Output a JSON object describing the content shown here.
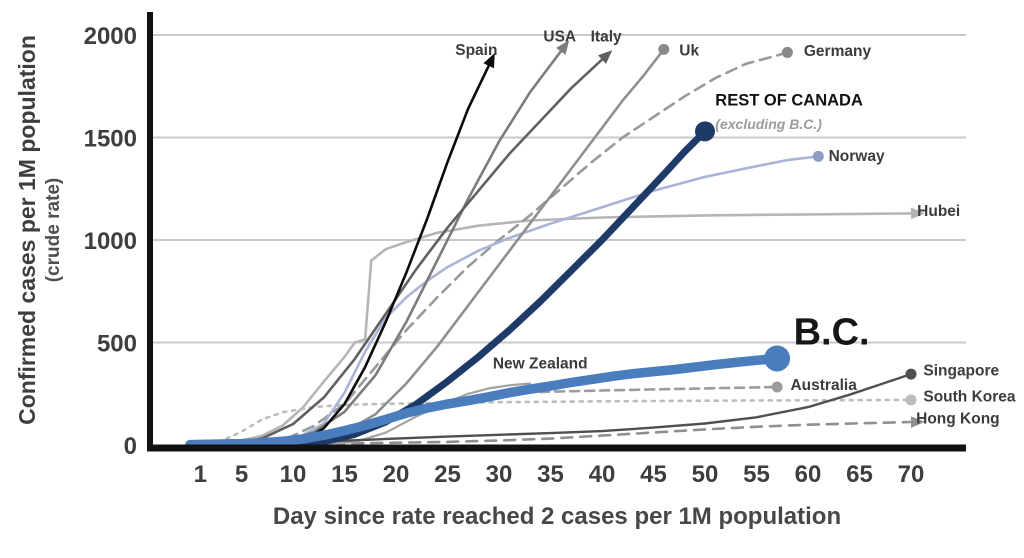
{
  "chart_data": {
    "type": "line",
    "xlabel": "Day since rate reached 2 cases per 1M population",
    "ylabel": "Confirmed cases per 1M population",
    "ylabel_sub": "(crude rate)",
    "xticks": [
      1,
      5,
      10,
      15,
      20,
      25,
      30,
      35,
      40,
      45,
      50,
      55,
      60,
      65,
      70
    ],
    "yticks": [
      0,
      500,
      1000,
      1500,
      2000
    ],
    "xlim": [
      0,
      73
    ],
    "ylim": [
      0,
      2050
    ],
    "grid_color": "#c9c9c9",
    "axis_color": "#111111",
    "tick_color": "#3e3e3e",
    "series": [
      {
        "id": "hubei",
        "name": "Hubei",
        "color": "#b5b5b5",
        "width": 2.6,
        "dash": null,
        "end": "arrow",
        "label": {
          "text": "Hubei",
          "d": 70.6,
          "v": 1118,
          "anchor": "start"
        },
        "points": [
          [
            1,
            2
          ],
          [
            4,
            10
          ],
          [
            7,
            45
          ],
          [
            9,
            95
          ],
          [
            11,
            185
          ],
          [
            13,
            310
          ],
          [
            15,
            430
          ],
          [
            16,
            500
          ],
          [
            17,
            515
          ],
          [
            17.6,
            900
          ],
          [
            19,
            955
          ],
          [
            21,
            990
          ],
          [
            24,
            1035
          ],
          [
            28,
            1070
          ],
          [
            33,
            1095
          ],
          [
            40,
            1110
          ],
          [
            50,
            1120
          ],
          [
            60,
            1125
          ],
          [
            70,
            1130
          ]
        ]
      },
      {
        "id": "south-korea",
        "name": "South Korea",
        "color": "#bcbcbc",
        "width": 2.6,
        "dash": "3 6",
        "end": "dot",
        "label": {
          "text": "South Korea",
          "d": 71.2,
          "v": 212,
          "anchor": "start"
        },
        "points": [
          [
            1,
            2
          ],
          [
            3,
            18
          ],
          [
            5,
            65
          ],
          [
            7,
            125
          ],
          [
            9,
            160
          ],
          [
            12,
            185
          ],
          [
            15,
            196
          ],
          [
            20,
            202
          ],
          [
            25,
            206
          ],
          [
            30,
            209
          ],
          [
            40,
            213
          ],
          [
            50,
            216
          ],
          [
            60,
            218
          ],
          [
            70,
            220
          ]
        ]
      },
      {
        "id": "hong-kong",
        "name": "Hong Kong",
        "color": "#8f8f8f",
        "width": 2.6,
        "dash": "11 8",
        "end": "arrow",
        "label": {
          "text": "Hong Kong",
          "d": 70.5,
          "v": 104,
          "anchor": "start"
        },
        "points": [
          [
            1,
            2
          ],
          [
            5,
            4
          ],
          [
            10,
            6
          ],
          [
            15,
            8
          ],
          [
            20,
            11
          ],
          [
            25,
            15
          ],
          [
            30,
            22
          ],
          [
            35,
            31
          ],
          [
            40,
            46
          ],
          [
            45,
            61
          ],
          [
            50,
            76
          ],
          [
            55,
            89
          ],
          [
            60,
            99
          ],
          [
            65,
            106
          ],
          [
            70,
            112
          ]
        ]
      },
      {
        "id": "australia",
        "name": "Australia",
        "color": "#9c9c9c",
        "width": 2.6,
        "dash": "9 6",
        "end": "dot",
        "label": {
          "text": "Australia",
          "d": 58.3,
          "v": 268,
          "anchor": "start"
        },
        "points": [
          [
            10,
            2
          ],
          [
            13,
            12
          ],
          [
            16,
            45
          ],
          [
            19,
            110
          ],
          [
            22,
            170
          ],
          [
            25,
            215
          ],
          [
            28,
            240
          ],
          [
            31,
            252
          ],
          [
            35,
            260
          ],
          [
            40,
            266
          ],
          [
            45,
            271
          ],
          [
            50,
            276
          ],
          [
            54,
            280
          ],
          [
            57,
            283
          ]
        ]
      },
      {
        "id": "new-zealand",
        "name": "New Zealand",
        "color": "#a3a3a3",
        "width": 2.2,
        "dash": null,
        "end": null,
        "label": {
          "text": "New Zealand",
          "d": 34,
          "v": 372,
          "anchor": "middle"
        },
        "points": [
          [
            13,
            2
          ],
          [
            16,
            15
          ],
          [
            19,
            60
          ],
          [
            22,
            140
          ],
          [
            25,
            210
          ],
          [
            27,
            250
          ],
          [
            29,
            276
          ],
          [
            31,
            291
          ],
          [
            33,
            300
          ]
        ]
      },
      {
        "id": "singapore",
        "name": "Singapore",
        "color": "#4f4f4f",
        "width": 2.4,
        "dash": null,
        "end": "dot",
        "label": {
          "text": "Singapore",
          "d": 71.2,
          "v": 338,
          "anchor": "start"
        },
        "points": [
          [
            1,
            2
          ],
          [
            5,
            7
          ],
          [
            10,
            13
          ],
          [
            15,
            21
          ],
          [
            20,
            31
          ],
          [
            25,
            41
          ],
          [
            30,
            50
          ],
          [
            35,
            58
          ],
          [
            40,
            68
          ],
          [
            45,
            85
          ],
          [
            50,
            105
          ],
          [
            55,
            135
          ],
          [
            60,
            185
          ],
          [
            64,
            245
          ],
          [
            67,
            295
          ],
          [
            70,
            346
          ]
        ]
      },
      {
        "id": "germany",
        "name": "Germany",
        "color": "#9a9a9a",
        "width": 2.6,
        "dash": "11 7",
        "end": "dot",
        "dot_color": "#8a8a8a",
        "label": {
          "text": "Germany",
          "d": 59.6,
          "v": 1898,
          "anchor": "start"
        },
        "points": [
          [
            6,
            2
          ],
          [
            9,
            22
          ],
          [
            12,
            92
          ],
          [
            15,
            200
          ],
          [
            18,
            380
          ],
          [
            21,
            560
          ],
          [
            24,
            720
          ],
          [
            27,
            870
          ],
          [
            30,
            1000
          ],
          [
            33,
            1120
          ],
          [
            36,
            1250
          ],
          [
            39,
            1380
          ],
          [
            42,
            1500
          ],
          [
            45,
            1600
          ],
          [
            48,
            1700
          ],
          [
            51,
            1790
          ],
          [
            54,
            1860
          ],
          [
            57,
            1900
          ],
          [
            58,
            1915
          ]
        ]
      },
      {
        "id": "norway",
        "name": "Norway",
        "color": "#aab4d8",
        "width": 2.6,
        "dash": null,
        "end": "dot",
        "dot_color": "#8e9cc6",
        "label": {
          "text": "Norway",
          "d": 62,
          "v": 1385,
          "anchor": "start"
        },
        "points": [
          [
            7,
            2
          ],
          [
            10,
            22
          ],
          [
            13,
            105
          ],
          [
            15,
            255
          ],
          [
            17,
            455
          ],
          [
            19,
            620
          ],
          [
            21,
            720
          ],
          [
            23,
            800
          ],
          [
            25,
            868
          ],
          [
            28,
            948
          ],
          [
            31,
            1010
          ],
          [
            35,
            1080
          ],
          [
            40,
            1160
          ],
          [
            45,
            1240
          ],
          [
            50,
            1308
          ],
          [
            55,
            1360
          ],
          [
            58,
            1390
          ],
          [
            61,
            1408
          ]
        ]
      },
      {
        "id": "uk",
        "name": "Uk",
        "color": "#8f8f8f",
        "width": 2.6,
        "dash": null,
        "end": "dot",
        "dot_color": "#8a8a8a",
        "label": {
          "text": "Uk",
          "d": 47.5,
          "v": 1900,
          "anchor": "start"
        },
        "points": [
          [
            9,
            2
          ],
          [
            12,
            16
          ],
          [
            15,
            62
          ],
          [
            18,
            150
          ],
          [
            21,
            300
          ],
          [
            24,
            480
          ],
          [
            27,
            680
          ],
          [
            30,
            880
          ],
          [
            33,
            1080
          ],
          [
            36,
            1280
          ],
          [
            39,
            1480
          ],
          [
            42,
            1680
          ],
          [
            44,
            1800
          ],
          [
            46,
            1930
          ]
        ]
      },
      {
        "id": "usa",
        "name": "USA",
        "color": "#7c7c7c",
        "width": 2.6,
        "dash": null,
        "end": "arrow",
        "label": {
          "text": "USA",
          "d": 35.9,
          "v": 1968,
          "anchor": "middle"
        },
        "points": [
          [
            6,
            2
          ],
          [
            9,
            16
          ],
          [
            12,
            62
          ],
          [
            15,
            162
          ],
          [
            18,
            340
          ],
          [
            21,
            600
          ],
          [
            24,
            900
          ],
          [
            27,
            1200
          ],
          [
            30,
            1480
          ],
          [
            33,
            1720
          ],
          [
            36,
            1920
          ]
        ]
      },
      {
        "id": "italy",
        "name": "Italy",
        "color": "#606060",
        "width": 2.6,
        "dash": null,
        "end": "arrow",
        "label": {
          "text": "Italy",
          "d": 40.4,
          "v": 1968,
          "anchor": "middle"
        },
        "points": [
          [
            4,
            2
          ],
          [
            7,
            32
          ],
          [
            10,
            102
          ],
          [
            13,
            232
          ],
          [
            16,
            420
          ],
          [
            19,
            640
          ],
          [
            22,
            860
          ],
          [
            25,
            1060
          ],
          [
            28,
            1240
          ],
          [
            31,
            1420
          ],
          [
            34,
            1580
          ],
          [
            37,
            1740
          ],
          [
            40,
            1880
          ]
        ]
      },
      {
        "id": "spain",
        "name": "Spain",
        "color": "#0b0b0b",
        "width": 2.6,
        "dash": null,
        "end": "arrow",
        "label": {
          "text": "Spain",
          "d": 27.8,
          "v": 1902,
          "anchor": "middle"
        },
        "points": [
          [
            9,
            2
          ],
          [
            11,
            22
          ],
          [
            13,
            82
          ],
          [
            15,
            200
          ],
          [
            17,
            380
          ],
          [
            19,
            600
          ],
          [
            21,
            840
          ],
          [
            23,
            1100
          ],
          [
            25,
            1380
          ],
          [
            27,
            1640
          ],
          [
            29,
            1850
          ]
        ]
      },
      {
        "id": "rest-of-canada",
        "name": "REST OF CANADA",
        "color": "#1e3a66",
        "width": 7,
        "dash": null,
        "end": "dot",
        "dot_r": 10,
        "label": {
          "text": "REST OF CANADA",
          "d": 51,
          "v": 1655,
          "anchor": "start",
          "size": 16.5,
          "color": "#111111"
        },
        "sublabel": {
          "text": "(excluding B.C.)",
          "d": 51,
          "v": 1542,
          "size": 14,
          "color": "#9b9b9b"
        },
        "points": [
          [
            10,
            2
          ],
          [
            13,
            16
          ],
          [
            16,
            52
          ],
          [
            19,
            112
          ],
          [
            22,
            200
          ],
          [
            25,
            310
          ],
          [
            28,
            430
          ],
          [
            31,
            560
          ],
          [
            34,
            700
          ],
          [
            37,
            850
          ],
          [
            40,
            1000
          ],
          [
            43,
            1160
          ],
          [
            46,
            1320
          ],
          [
            48,
            1430
          ],
          [
            50,
            1530
          ]
        ]
      },
      {
        "id": "bc",
        "name": "B.C.",
        "color": "#4a7dbd",
        "width": 9.5,
        "dash": null,
        "end": "dot",
        "dot_r": 13,
        "label": {
          "text": "B.C.",
          "d": 58.6,
          "v": 490,
          "anchor": "start",
          "size": 38,
          "color": "#161616"
        },
        "points": [
          [
            0,
            2
          ],
          [
            3,
            5
          ],
          [
            5,
            7
          ],
          [
            7,
            11
          ],
          [
            9,
            18
          ],
          [
            11,
            30
          ],
          [
            13,
            48
          ],
          [
            15,
            70
          ],
          [
            17,
            95
          ],
          [
            19,
            125
          ],
          [
            21,
            155
          ],
          [
            23,
            180
          ],
          [
            25,
            200
          ],
          [
            27,
            216
          ],
          [
            29,
            235
          ],
          [
            31,
            255
          ],
          [
            33,
            272
          ],
          [
            35,
            288
          ],
          [
            37,
            305
          ],
          [
            39,
            320
          ],
          [
            41,
            335
          ],
          [
            43,
            348
          ],
          [
            45,
            358
          ],
          [
            47,
            368
          ],
          [
            49,
            380
          ],
          [
            51,
            392
          ],
          [
            53,
            403
          ],
          [
            55,
            413
          ],
          [
            57,
            422
          ]
        ]
      }
    ]
  }
}
